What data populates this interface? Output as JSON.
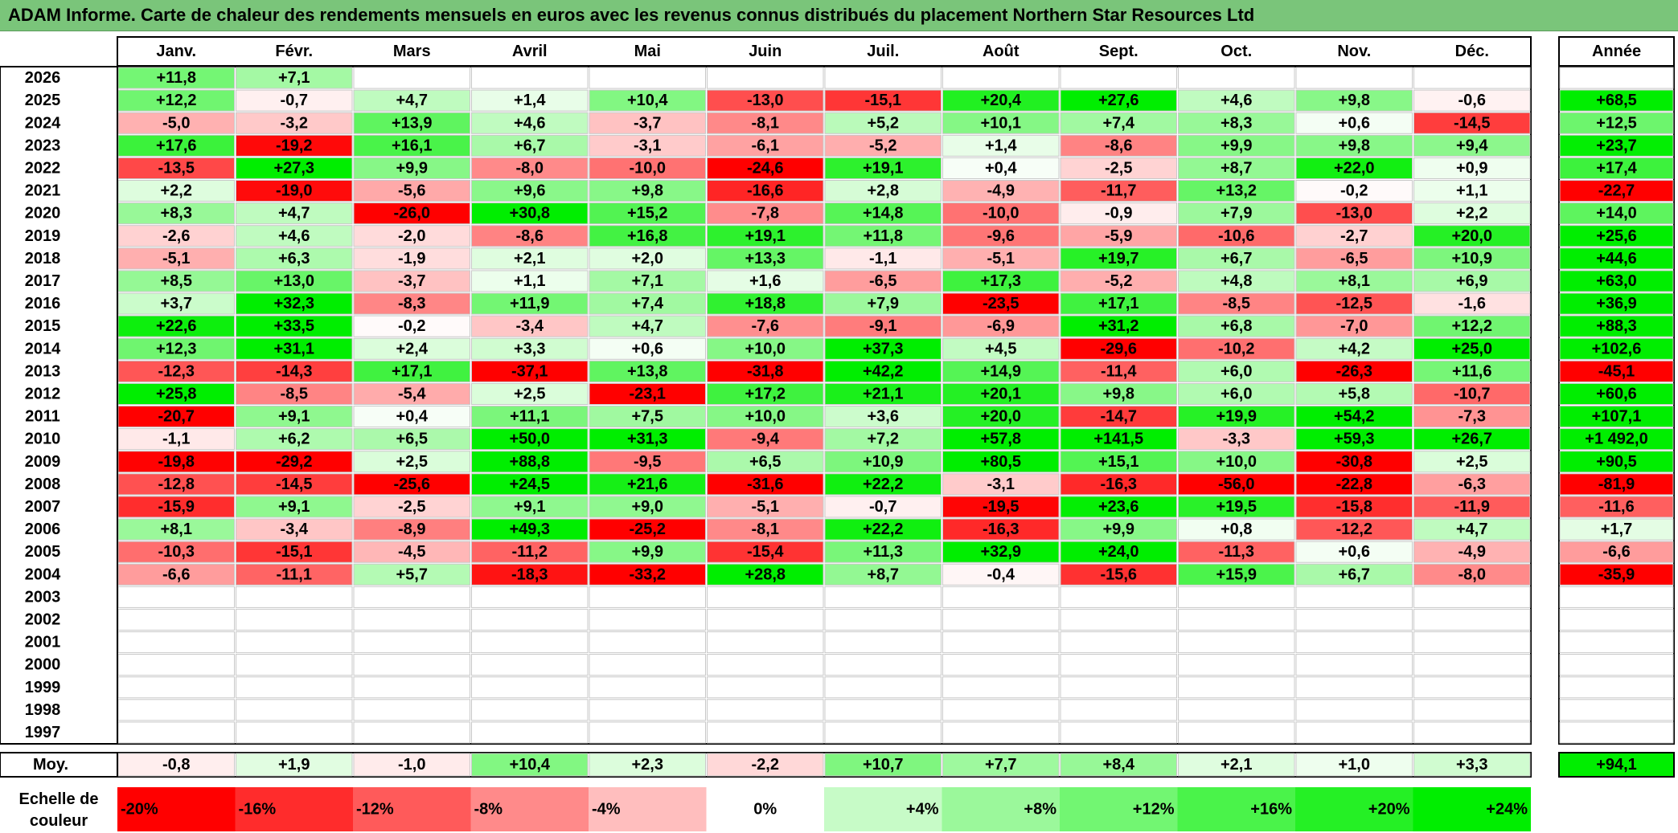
{
  "header": {
    "title": "ADAM Informe. Carte de chaleur des rendements mensuels en euros avec les revenus connus distribués du placement Northern Star Resources Ltd"
  },
  "colors": {
    "title_bg": "#7ac57a",
    "strong_red": "#ff0000",
    "strong_green": "#00ee00",
    "neutral": "#ffffff"
  },
  "chart_data": {
    "type": "heatmap",
    "title": "ADAM Informe. Carte de chaleur des rendements mensuels en euros avec les revenus connus distribués du placement Northern Star Resources Ltd",
    "months": [
      "Janv.",
      "Févr.",
      "Mars",
      "Avril",
      "Mai",
      "Juin",
      "Juil.",
      "Août",
      "Sept.",
      "Oct.",
      "Nov.",
      "Déc."
    ],
    "year_header": "Année",
    "rows": [
      {
        "year": "2026",
        "values": [
          "+11,8",
          "+7,1",
          "",
          "",
          "",
          "",
          "",
          "",
          "",
          "",
          "",
          ""
        ],
        "annual": ""
      },
      {
        "year": "2025",
        "values": [
          "+12,2",
          "-0,7",
          "+4,7",
          "+1,4",
          "+10,4",
          "-13,0",
          "-15,1",
          "+20,4",
          "+27,6",
          "+4,6",
          "+9,8",
          "-0,6"
        ],
        "annual": "+68,5"
      },
      {
        "year": "2024",
        "values": [
          "-5,0",
          "-3,2",
          "+13,9",
          "+4,6",
          "-3,7",
          "-8,1",
          "+5,2",
          "+10,1",
          "+7,4",
          "+8,3",
          "+0,6",
          "-14,5"
        ],
        "annual": "+12,5"
      },
      {
        "year": "2023",
        "values": [
          "+17,6",
          "-19,2",
          "+16,1",
          "+6,7",
          "-3,1",
          "-6,1",
          "-5,2",
          "+1,4",
          "-8,6",
          "+9,9",
          "+9,8",
          "+9,4"
        ],
        "annual": "+23,7"
      },
      {
        "year": "2022",
        "values": [
          "-13,5",
          "+27,3",
          "+9,9",
          "-8,0",
          "-10,0",
          "-24,6",
          "+19,1",
          "+0,4",
          "-2,5",
          "+8,7",
          "+22,0",
          "+0,9"
        ],
        "annual": "+17,4"
      },
      {
        "year": "2021",
        "values": [
          "+2,2",
          "-19,0",
          "-5,6",
          "+9,6",
          "+9,8",
          "-16,6",
          "+2,8",
          "-4,9",
          "-11,7",
          "+13,2",
          "-0,2",
          "+1,1"
        ],
        "annual": "-22,7"
      },
      {
        "year": "2020",
        "values": [
          "+8,3",
          "+4,7",
          "-26,0",
          "+30,8",
          "+15,2",
          "-7,8",
          "+14,8",
          "-10,0",
          "-0,9",
          "+7,9",
          "-13,0",
          "+2,2"
        ],
        "annual": "+14,0"
      },
      {
        "year": "2019",
        "values": [
          "-2,6",
          "+4,6",
          "-2,0",
          "-8,6",
          "+16,8",
          "+19,1",
          "+11,8",
          "-9,6",
          "-5,9",
          "-10,6",
          "-2,7",
          "+20,0"
        ],
        "annual": "+25,6"
      },
      {
        "year": "2018",
        "values": [
          "-5,1",
          "+6,3",
          "-1,9",
          "+2,1",
          "+2,0",
          "+13,3",
          "-1,1",
          "-5,1",
          "+19,7",
          "+6,7",
          "-6,5",
          "+10,9"
        ],
        "annual": "+44,6"
      },
      {
        "year": "2017",
        "values": [
          "+8,5",
          "+13,0",
          "-3,7",
          "+1,1",
          "+7,1",
          "+1,6",
          "-6,5",
          "+17,3",
          "-5,2",
          "+4,8",
          "+8,1",
          "+6,9"
        ],
        "annual": "+63,0"
      },
      {
        "year": "2016",
        "values": [
          "+3,7",
          "+32,3",
          "-8,3",
          "+11,9",
          "+7,4",
          "+18,8",
          "+7,9",
          "-23,5",
          "+17,1",
          "-8,5",
          "-12,5",
          "-1,6"
        ],
        "annual": "+36,9"
      },
      {
        "year": "2015",
        "values": [
          "+22,6",
          "+33,5",
          "-0,2",
          "-3,4",
          "+4,7",
          "-7,6",
          "-9,1",
          "-6,9",
          "+31,2",
          "+6,8",
          "-7,0",
          "+12,2"
        ],
        "annual": "+88,3"
      },
      {
        "year": "2014",
        "values": [
          "+12,3",
          "+31,1",
          "+2,4",
          "+3,3",
          "+0,6",
          "+10,0",
          "+37,3",
          "+4,5",
          "-29,6",
          "-10,2",
          "+4,2",
          "+25,0"
        ],
        "annual": "+102,6"
      },
      {
        "year": "2013",
        "values": [
          "-12,3",
          "-14,3",
          "+17,1",
          "-37,1",
          "+13,8",
          "-31,8",
          "+42,2",
          "+14,9",
          "-11,4",
          "+6,0",
          "-26,3",
          "+11,6"
        ],
        "annual": "-45,1"
      },
      {
        "year": "2012",
        "values": [
          "+25,8",
          "-8,5",
          "-5,4",
          "+2,5",
          "-23,1",
          "+17,2",
          "+21,1",
          "+20,1",
          "+9,8",
          "+6,0",
          "+5,8",
          "-10,7"
        ],
        "annual": "+60,6"
      },
      {
        "year": "2011",
        "values": [
          "-20,7",
          "+9,1",
          "+0,4",
          "+11,1",
          "+7,5",
          "+10,0",
          "+3,6",
          "+20,0",
          "-14,7",
          "+19,9",
          "+54,2",
          "-7,3"
        ],
        "annual": "+107,1"
      },
      {
        "year": "2010",
        "values": [
          "-1,1",
          "+6,2",
          "+6,5",
          "+50,0",
          "+31,3",
          "-9,4",
          "+7,2",
          "+57,8",
          "+141,5",
          "-3,3",
          "+59,3",
          "+26,7"
        ],
        "annual": "+1 492,0"
      },
      {
        "year": "2009",
        "values": [
          "-19,8",
          "-29,2",
          "+2,5",
          "+88,8",
          "-9,5",
          "+6,5",
          "+10,9",
          "+80,5",
          "+15,1",
          "+10,0",
          "-30,8",
          "+2,5"
        ],
        "annual": "+90,5"
      },
      {
        "year": "2008",
        "values": [
          "-12,8",
          "-14,5",
          "-25,6",
          "+24,5",
          "+21,6",
          "-31,6",
          "+22,2",
          "-3,1",
          "-16,3",
          "-56,0",
          "-22,8",
          "-6,3"
        ],
        "annual": "-81,9"
      },
      {
        "year": "2007",
        "values": [
          "-15,9",
          "+9,1",
          "-2,5",
          "+9,1",
          "+9,0",
          "-5,1",
          "-0,7",
          "-19,5",
          "+23,6",
          "+19,5",
          "-15,8",
          "-11,9"
        ],
        "annual": "-11,6"
      },
      {
        "year": "2006",
        "values": [
          "+8,1",
          "-3,4",
          "-8,9",
          "+49,3",
          "-25,2",
          "-8,1",
          "+22,2",
          "-16,3",
          "+9,9",
          "+0,8",
          "-12,2",
          "+4,7"
        ],
        "annual": "+1,7"
      },
      {
        "year": "2005",
        "values": [
          "-10,3",
          "-15,1",
          "-4,5",
          "-11,2",
          "+9,9",
          "-15,4",
          "+11,3",
          "+32,9",
          "+24,0",
          "-11,3",
          "+0,6",
          "-4,9"
        ],
        "annual": "-6,6"
      },
      {
        "year": "2004",
        "values": [
          "-6,6",
          "-11,1",
          "+5,7",
          "-18,3",
          "-33,2",
          "+28,8",
          "+8,7",
          "-0,4",
          "-15,6",
          "+15,9",
          "+6,7",
          "-8,0"
        ],
        "annual": "-35,9"
      },
      {
        "year": "2003",
        "values": [
          "",
          "",
          "",
          "",
          "",
          "",
          "",
          "",
          "",
          "",
          "",
          ""
        ],
        "annual": ""
      },
      {
        "year": "2002",
        "values": [
          "",
          "",
          "",
          "",
          "",
          "",
          "",
          "",
          "",
          "",
          "",
          ""
        ],
        "annual": ""
      },
      {
        "year": "2001",
        "values": [
          "",
          "",
          "",
          "",
          "",
          "",
          "",
          "",
          "",
          "",
          "",
          ""
        ],
        "annual": ""
      },
      {
        "year": "2000",
        "values": [
          "",
          "",
          "",
          "",
          "",
          "",
          "",
          "",
          "",
          "",
          "",
          ""
        ],
        "annual": ""
      },
      {
        "year": "1999",
        "values": [
          "",
          "",
          "",
          "",
          "",
          "",
          "",
          "",
          "",
          "",
          "",
          ""
        ],
        "annual": ""
      },
      {
        "year": "1998",
        "values": [
          "",
          "",
          "",
          "",
          "",
          "",
          "",
          "",
          "",
          "",
          "",
          ""
        ],
        "annual": ""
      },
      {
        "year": "1997",
        "values": [
          "",
          "",
          "",
          "",
          "",
          "",
          "",
          "",
          "",
          "",
          "",
          ""
        ],
        "annual": ""
      }
    ],
    "average": {
      "label": "Moy.",
      "values": [
        "-0,8",
        "+1,9",
        "-1,0",
        "+10,4",
        "+2,3",
        "-2,2",
        "+10,7",
        "+7,7",
        "+8,4",
        "+2,1",
        "+1,0",
        "+3,3"
      ],
      "annual": "+94,1"
    },
    "scale": {
      "label_line1": "Echelle de",
      "label_line2": "couleur",
      "steps": [
        {
          "label": "-20%",
          "value": -20
        },
        {
          "label": "-16%",
          "value": -16
        },
        {
          "label": "-12%",
          "value": -12
        },
        {
          "label": "-8%",
          "value": -8
        },
        {
          "label": "-4%",
          "value": -4
        },
        {
          "label": "0%",
          "value": 0
        },
        {
          "label": "+4%",
          "value": 4
        },
        {
          "label": "+8%",
          "value": 8
        },
        {
          "label": "+12%",
          "value": 12
        },
        {
          "label": "+16%",
          "value": 16
        },
        {
          "label": "+20%",
          "value": 20
        },
        {
          "label": "+24%",
          "value": 24
        }
      ]
    }
  }
}
